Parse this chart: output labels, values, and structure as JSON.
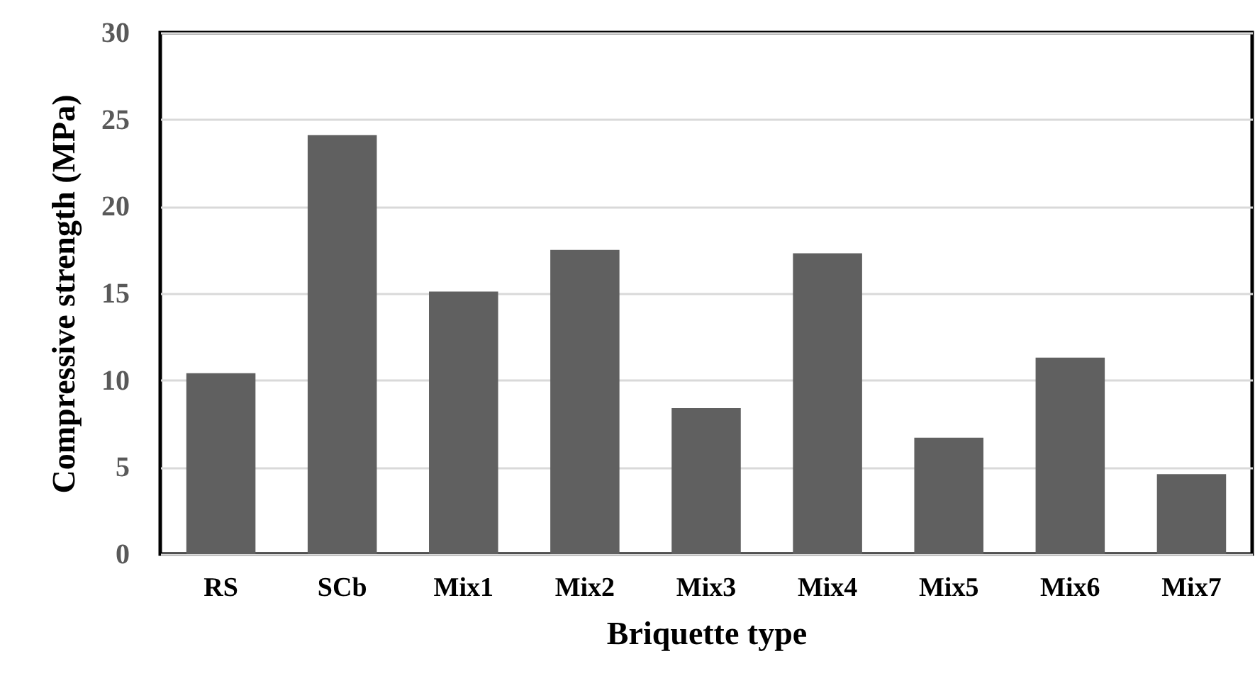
{
  "chart_data": {
    "type": "bar",
    "xlabel": "Briquette type",
    "ylabel": "Compressive strength  (MPa)",
    "categories": [
      "RS",
      "SCb",
      "Mix1",
      "Mix2",
      "Mix3",
      "Mix4",
      "Mix5",
      "Mix6",
      "Mix7"
    ],
    "values": [
      10.4,
      24.1,
      15.1,
      17.5,
      8.4,
      17.3,
      6.7,
      11.3,
      4.6
    ],
    "color": "#606060",
    "ylim": [
      0,
      30
    ],
    "yticks": [
      0,
      5,
      10,
      15,
      20,
      25,
      30
    ],
    "grid": "y"
  }
}
